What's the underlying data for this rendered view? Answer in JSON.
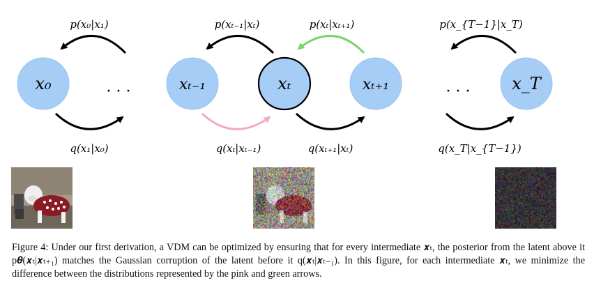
{
  "nodes": [
    {
      "id": "x0",
      "label": "x₀",
      "color": "#a6cdf6"
    },
    {
      "id": "xt_minus_1",
      "label": "xₜ₋₁",
      "color": "#a6cdf6"
    },
    {
      "id": "xt",
      "label": "xₜ",
      "color": "#a6cdf6"
    },
    {
      "id": "xt_plus_1",
      "label": "xₜ₊₁",
      "color": "#a6cdf6"
    },
    {
      "id": "xT",
      "label": "x_T",
      "color": "#a6cdf6"
    }
  ],
  "ellipses": [
    "· · ·",
    "· · ·"
  ],
  "top_labels": {
    "p_x0_given_x1": "p(x₀|x₁)",
    "p_xtm1_given_xt": "p(xₜ₋₁|xₜ)",
    "p_xt_given_xtp1": "p(xₜ|xₜ₊₁)",
    "p_xTm1_given_xT": "p(x_{T−1}|x_T)"
  },
  "bottom_labels": {
    "q_x1_given_x0": "q(x₁|x₀)",
    "q_xt_given_xtm1": "q(xₜ|xₜ₋₁)",
    "q_xtp1_given_xt": "q(xₜ₊₁|xₜ)",
    "q_xT_given_xTm1": "q(x_T|x_{T−1})"
  },
  "arrow_colors": {
    "default": "#000000",
    "pink": "#f4a9c8",
    "green": "#7ad36b"
  },
  "images": [
    {
      "name": "clean-dog-image",
      "caption": ""
    },
    {
      "name": "partially-noised-dog-image",
      "caption": ""
    },
    {
      "name": "pure-noise-image",
      "caption": ""
    }
  ],
  "caption": {
    "figure_label": "Figure 4:",
    "text": "Under our first derivation, a VDM can be optimized by ensuring that for every intermediate 𝒙ₜ, the posterior from the latent above it p𝜽(𝒙ₜ|𝒙ₜ₊₁) matches the Gaussian corruption of the latent before it q(𝒙ₜ|𝒙ₜ₋₁). In this figure, for each intermediate 𝒙ₜ, we minimize the difference between the distributions represented by the pink and green arrows."
  }
}
